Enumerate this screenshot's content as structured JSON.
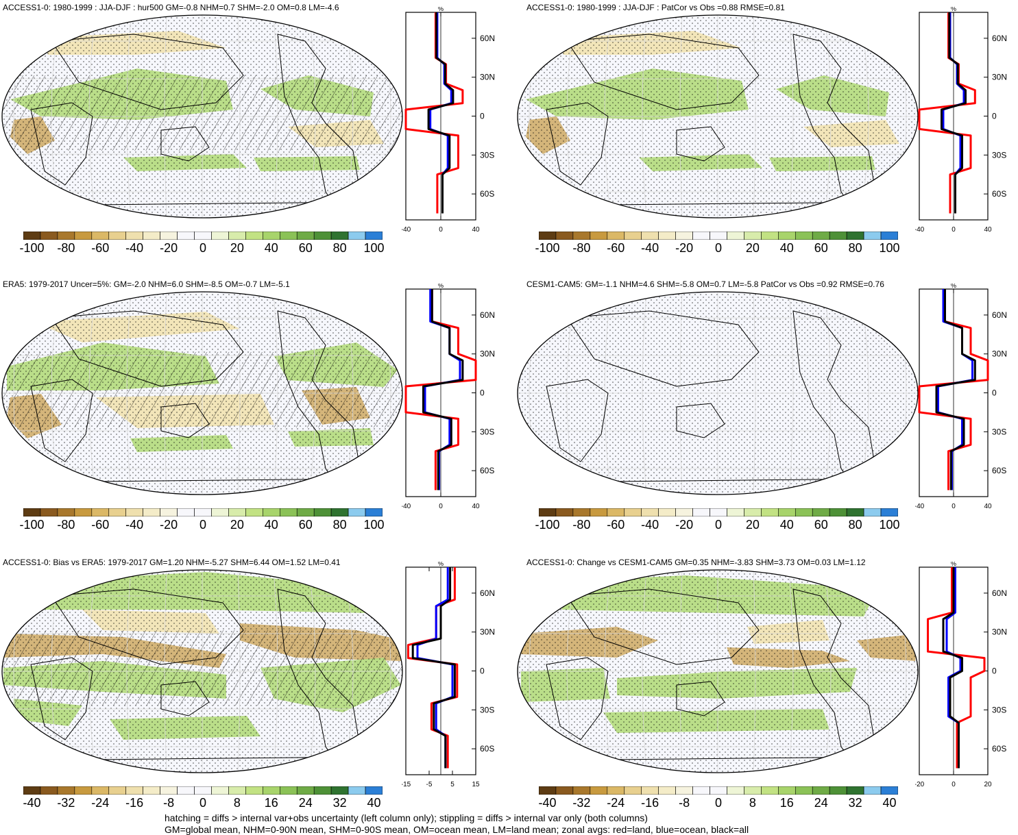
{
  "panels": [
    {
      "title": "ACCESS1-0: 1980-1999 : JJA-DJF : hur500 GM=-0.8 NHM=0.7 SHM=-2.0 OM=0.8 LM=-4.6",
      "zonal_ticks": [
        "-40",
        "0",
        "40"
      ],
      "colorbar_labels": [
        "-100",
        "-80",
        "-60",
        "-40",
        "-20",
        "0",
        "20",
        "40",
        "60",
        "80",
        "100"
      ],
      "hatched": true,
      "style": "a"
    },
    {
      "title": "ACCESS1-0: 1980-1999 : JJA-DJF : PatCor vs Obs =0.88 RMSE=0.81",
      "zonal_ticks": [
        "-40",
        "0",
        "40"
      ],
      "colorbar_labels": [
        "-100",
        "-80",
        "-60",
        "-40",
        "-20",
        "0",
        "20",
        "40",
        "60",
        "80",
        "100"
      ],
      "hatched": false,
      "style": "a"
    },
    {
      "title": "ERA5: 1979-2017 Uncer=5%: GM=-2.0 NHM=6.0 SHM=-8.5 OM=-0.7 LM=-5.1",
      "zonal_ticks": [
        "-40",
        "0",
        "40"
      ],
      "colorbar_labels": [
        "-100",
        "-80",
        "-60",
        "-40",
        "-20",
        "0",
        "20",
        "40",
        "60",
        "80",
        "100"
      ],
      "hatched": true,
      "style": "b"
    },
    {
      "title": "CESM1-CAM5: GM=-1.1 NHM=4.6 SHM=-5.8 OM=0.7 LM=-5.8 PatCor vs Obs =0.92 RMSE=0.76",
      "zonal_ticks": [
        "-40",
        "0",
        "40"
      ],
      "colorbar_labels": [
        "-100",
        "-80",
        "-60",
        "-40",
        "-20",
        "0",
        "20",
        "40",
        "60",
        "80",
        "100"
      ],
      "hatched": false,
      "style": "b"
    },
    {
      "title": "ACCESS1-0: Bias vs ERA5: 1979-2017 GM=1.20 NHM=-5.27 SHM=6.44 OM=1.52 LM=0.41",
      "zonal_ticks": [
        "-15",
        "-5",
        "5",
        "15"
      ],
      "colorbar_labels": [
        "-40",
        "-32",
        "-24",
        "-16",
        "-8",
        "0",
        "8",
        "16",
        "24",
        "32",
        "40"
      ],
      "hatched": true,
      "style": "c"
    },
    {
      "title": "ACCESS1-0: Change vs CESM1-CAM5 GM=0.35 NHM=-3.83 SHM=3.73 OM=0.03 LM=1.12",
      "zonal_ticks": [
        "-20",
        "0",
        "20"
      ],
      "colorbar_labels": [
        "-40",
        "-32",
        "-24",
        "-16",
        "-8",
        "0",
        "8",
        "16",
        "24",
        "32",
        "40"
      ],
      "hatched": false,
      "style": "d"
    }
  ],
  "zonal": {
    "unit": "%",
    "lat_labels": [
      "60N",
      "30N",
      "0",
      "30S",
      "60S"
    ]
  },
  "colors": {
    "land": "#ff0000",
    "ocean": "#0000ff",
    "all": "#000000",
    "scale": [
      "#5e3c13",
      "#8a5a1f",
      "#a9782c",
      "#c89a3f",
      "#dbb866",
      "#e8d08f",
      "#efe0ae",
      "#f4ecc8",
      "#f6f3df",
      "#f7f7fb",
      "#f7f7fb",
      "#eef5d6",
      "#d8ecab",
      "#c2e283",
      "#a8d46b",
      "#8bc257",
      "#6fab46",
      "#4e9137",
      "#2f7330",
      "#8ccbee",
      "#2b7fd6"
    ]
  },
  "footer": [
    "hatching = diffs > internal var+obs uncertainty (left column only); stippling = diffs > internal var only (both columns)",
    "GM=global mean, NHM=0-90N mean, SHM=0-90S mean, OM=ocean mean, LM=land mean; zonal avgs: red=land, blue=ocean, black=all"
  ]
}
